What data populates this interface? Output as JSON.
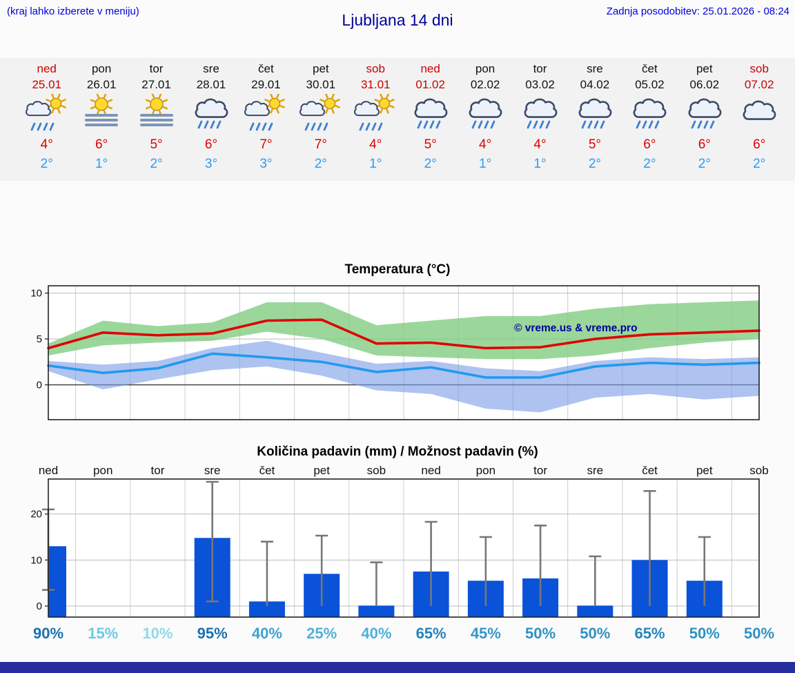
{
  "header": {
    "hint": "(kraj lahko izberete v meniju)",
    "title": "Ljubljana 14 dni",
    "updated": "Zadnja posodobitev: 25.01.2026 - 08:24"
  },
  "forecast": {
    "days": [
      {
        "name": "ned",
        "date": "25.01",
        "weekend": true,
        "icon": "sun_rain",
        "high": "4°",
        "low": "2°"
      },
      {
        "name": "pon",
        "date": "26.01",
        "weekend": false,
        "icon": "sun_fog",
        "high": "6°",
        "low": "1°"
      },
      {
        "name": "tor",
        "date": "27.01",
        "weekend": false,
        "icon": "sun_fog",
        "high": "5°",
        "low": "2°"
      },
      {
        "name": "sre",
        "date": "28.01",
        "weekend": false,
        "icon": "cloud_rain",
        "high": "6°",
        "low": "3°"
      },
      {
        "name": "čet",
        "date": "29.01",
        "weekend": false,
        "icon": "sun_rain",
        "high": "7°",
        "low": "3°"
      },
      {
        "name": "pet",
        "date": "30.01",
        "weekend": false,
        "icon": "sun_rain",
        "high": "7°",
        "low": "2°"
      },
      {
        "name": "sob",
        "date": "31.01",
        "weekend": true,
        "icon": "sun_rain",
        "high": "4°",
        "low": "1°"
      },
      {
        "name": "ned",
        "date": "01.02",
        "weekend": true,
        "icon": "cloud_rain",
        "high": "5°",
        "low": "2°"
      },
      {
        "name": "pon",
        "date": "02.02",
        "weekend": false,
        "icon": "cloud_rain",
        "high": "4°",
        "low": "1°"
      },
      {
        "name": "tor",
        "date": "03.02",
        "weekend": false,
        "icon": "cloud_rain",
        "high": "4°",
        "low": "1°"
      },
      {
        "name": "sre",
        "date": "04.02",
        "weekend": false,
        "icon": "cloud_rain",
        "high": "5°",
        "low": "2°"
      },
      {
        "name": "čet",
        "date": "05.02",
        "weekend": false,
        "icon": "cloud_rain",
        "high": "6°",
        "low": "2°"
      },
      {
        "name": "pet",
        "date": "06.02",
        "weekend": false,
        "icon": "cloud_rain",
        "high": "6°",
        "low": "2°"
      },
      {
        "name": "sob",
        "date": "07.02",
        "weekend": true,
        "icon": "cloud",
        "high": "6°",
        "low": "2°"
      }
    ]
  },
  "chart_data": [
    {
      "type": "line",
      "title": "Temperatura (°C)",
      "xlabel": "",
      "ylabel": "",
      "watermark": "© vreme.us & vreme.pro",
      "ylim": [
        -3.8,
        10.8
      ],
      "yticks": [
        0,
        5,
        10
      ],
      "categories": [
        "ned",
        "pon",
        "tor",
        "sre",
        "čet",
        "pet",
        "sob",
        "ned",
        "pon",
        "tor",
        "sre",
        "čet",
        "pet",
        "sob"
      ],
      "series": [
        {
          "name": "max_temp",
          "color": "#e00000",
          "values": [
            4.0,
            5.7,
            5.4,
            5.6,
            7.0,
            7.1,
            4.5,
            4.6,
            4.0,
            4.1,
            5.0,
            5.5,
            5.7,
            5.9
          ]
        },
        {
          "name": "min_temp",
          "color": "#2299ee",
          "values": [
            2.1,
            1.3,
            1.8,
            3.4,
            3.0,
            2.5,
            1.4,
            1.9,
            0.8,
            0.8,
            2.0,
            2.4,
            2.2,
            2.4
          ]
        }
      ],
      "bands": [
        {
          "name": "max_temp_range",
          "color": "rgba(130,205,130,0.8)",
          "upper": [
            4.5,
            7.0,
            6.4,
            6.8,
            9.0,
            9.0,
            6.5,
            7.0,
            7.5,
            7.5,
            8.3,
            8.8,
            9.0,
            9.2
          ],
          "lower": [
            3.2,
            4.3,
            4.6,
            4.8,
            5.8,
            5.0,
            3.2,
            3.0,
            2.8,
            2.8,
            3.2,
            4.0,
            4.6,
            5.0
          ]
        },
        {
          "name": "min_temp_range",
          "color": "rgba(120,155,230,0.6)",
          "upper": [
            2.6,
            2.2,
            2.6,
            4.0,
            4.8,
            3.5,
            2.3,
            2.6,
            1.8,
            1.5,
            2.6,
            3.0,
            2.8,
            3.0
          ],
          "lower": [
            1.5,
            -0.5,
            0.6,
            1.6,
            2.0,
            1.0,
            -0.6,
            -1.0,
            -2.6,
            -3.0,
            -1.4,
            -1.0,
            -1.6,
            -1.2
          ]
        }
      ]
    },
    {
      "type": "bar",
      "title": "Količina padavin (mm) / Možnost padavin (%)",
      "xlabel": "",
      "ylabel": "",
      "ylim": [
        -2.4,
        27.6
      ],
      "yticks": [
        0,
        10,
        20
      ],
      "bar_color": "#0a52d8",
      "whisker_color": "#777777",
      "categories": [
        "ned",
        "pon",
        "tor",
        "sre",
        "čet",
        "pet",
        "sob",
        "ned",
        "pon",
        "tor",
        "sre",
        "čet",
        "pet",
        "sob"
      ],
      "values": [
        13,
        0,
        0,
        14.8,
        1,
        7,
        0.1,
        7.5,
        5.5,
        6,
        0.1,
        10,
        5.5,
        0
      ],
      "whisker_low": [
        3.5,
        0,
        0,
        1,
        0,
        0,
        0,
        0,
        0,
        0,
        0,
        0,
        0,
        0
      ],
      "whisker_high": [
        21,
        0,
        0,
        27,
        14,
        15.3,
        9.5,
        18.3,
        15,
        17.5,
        10.8,
        25,
        15,
        0
      ],
      "probabilities": [
        "90%",
        "15%",
        "10%",
        "95%",
        "40%",
        "25%",
        "40%",
        "65%",
        "45%",
        "50%",
        "50%",
        "65%",
        "50%",
        "50%"
      ],
      "prob_colors": [
        "#1a72ad",
        "#6ec8e4",
        "#8fd9ec",
        "#1a72ad",
        "#3fa3cf",
        "#51b1d9",
        "#4fb0da",
        "#2384bb",
        "#3598c8",
        "#2f91c4",
        "#2f91c4",
        "#2384bb",
        "#2f91c4",
        "#2f91c4"
      ]
    }
  ],
  "colors": {
    "accent_blue": "#0000dd",
    "title_blue": "#000099",
    "high_temp_red": "#dd0000",
    "low_temp_blue": "#2b9bf4",
    "weekend_red": "#cc0000",
    "footer_navy": "#252da0"
  }
}
